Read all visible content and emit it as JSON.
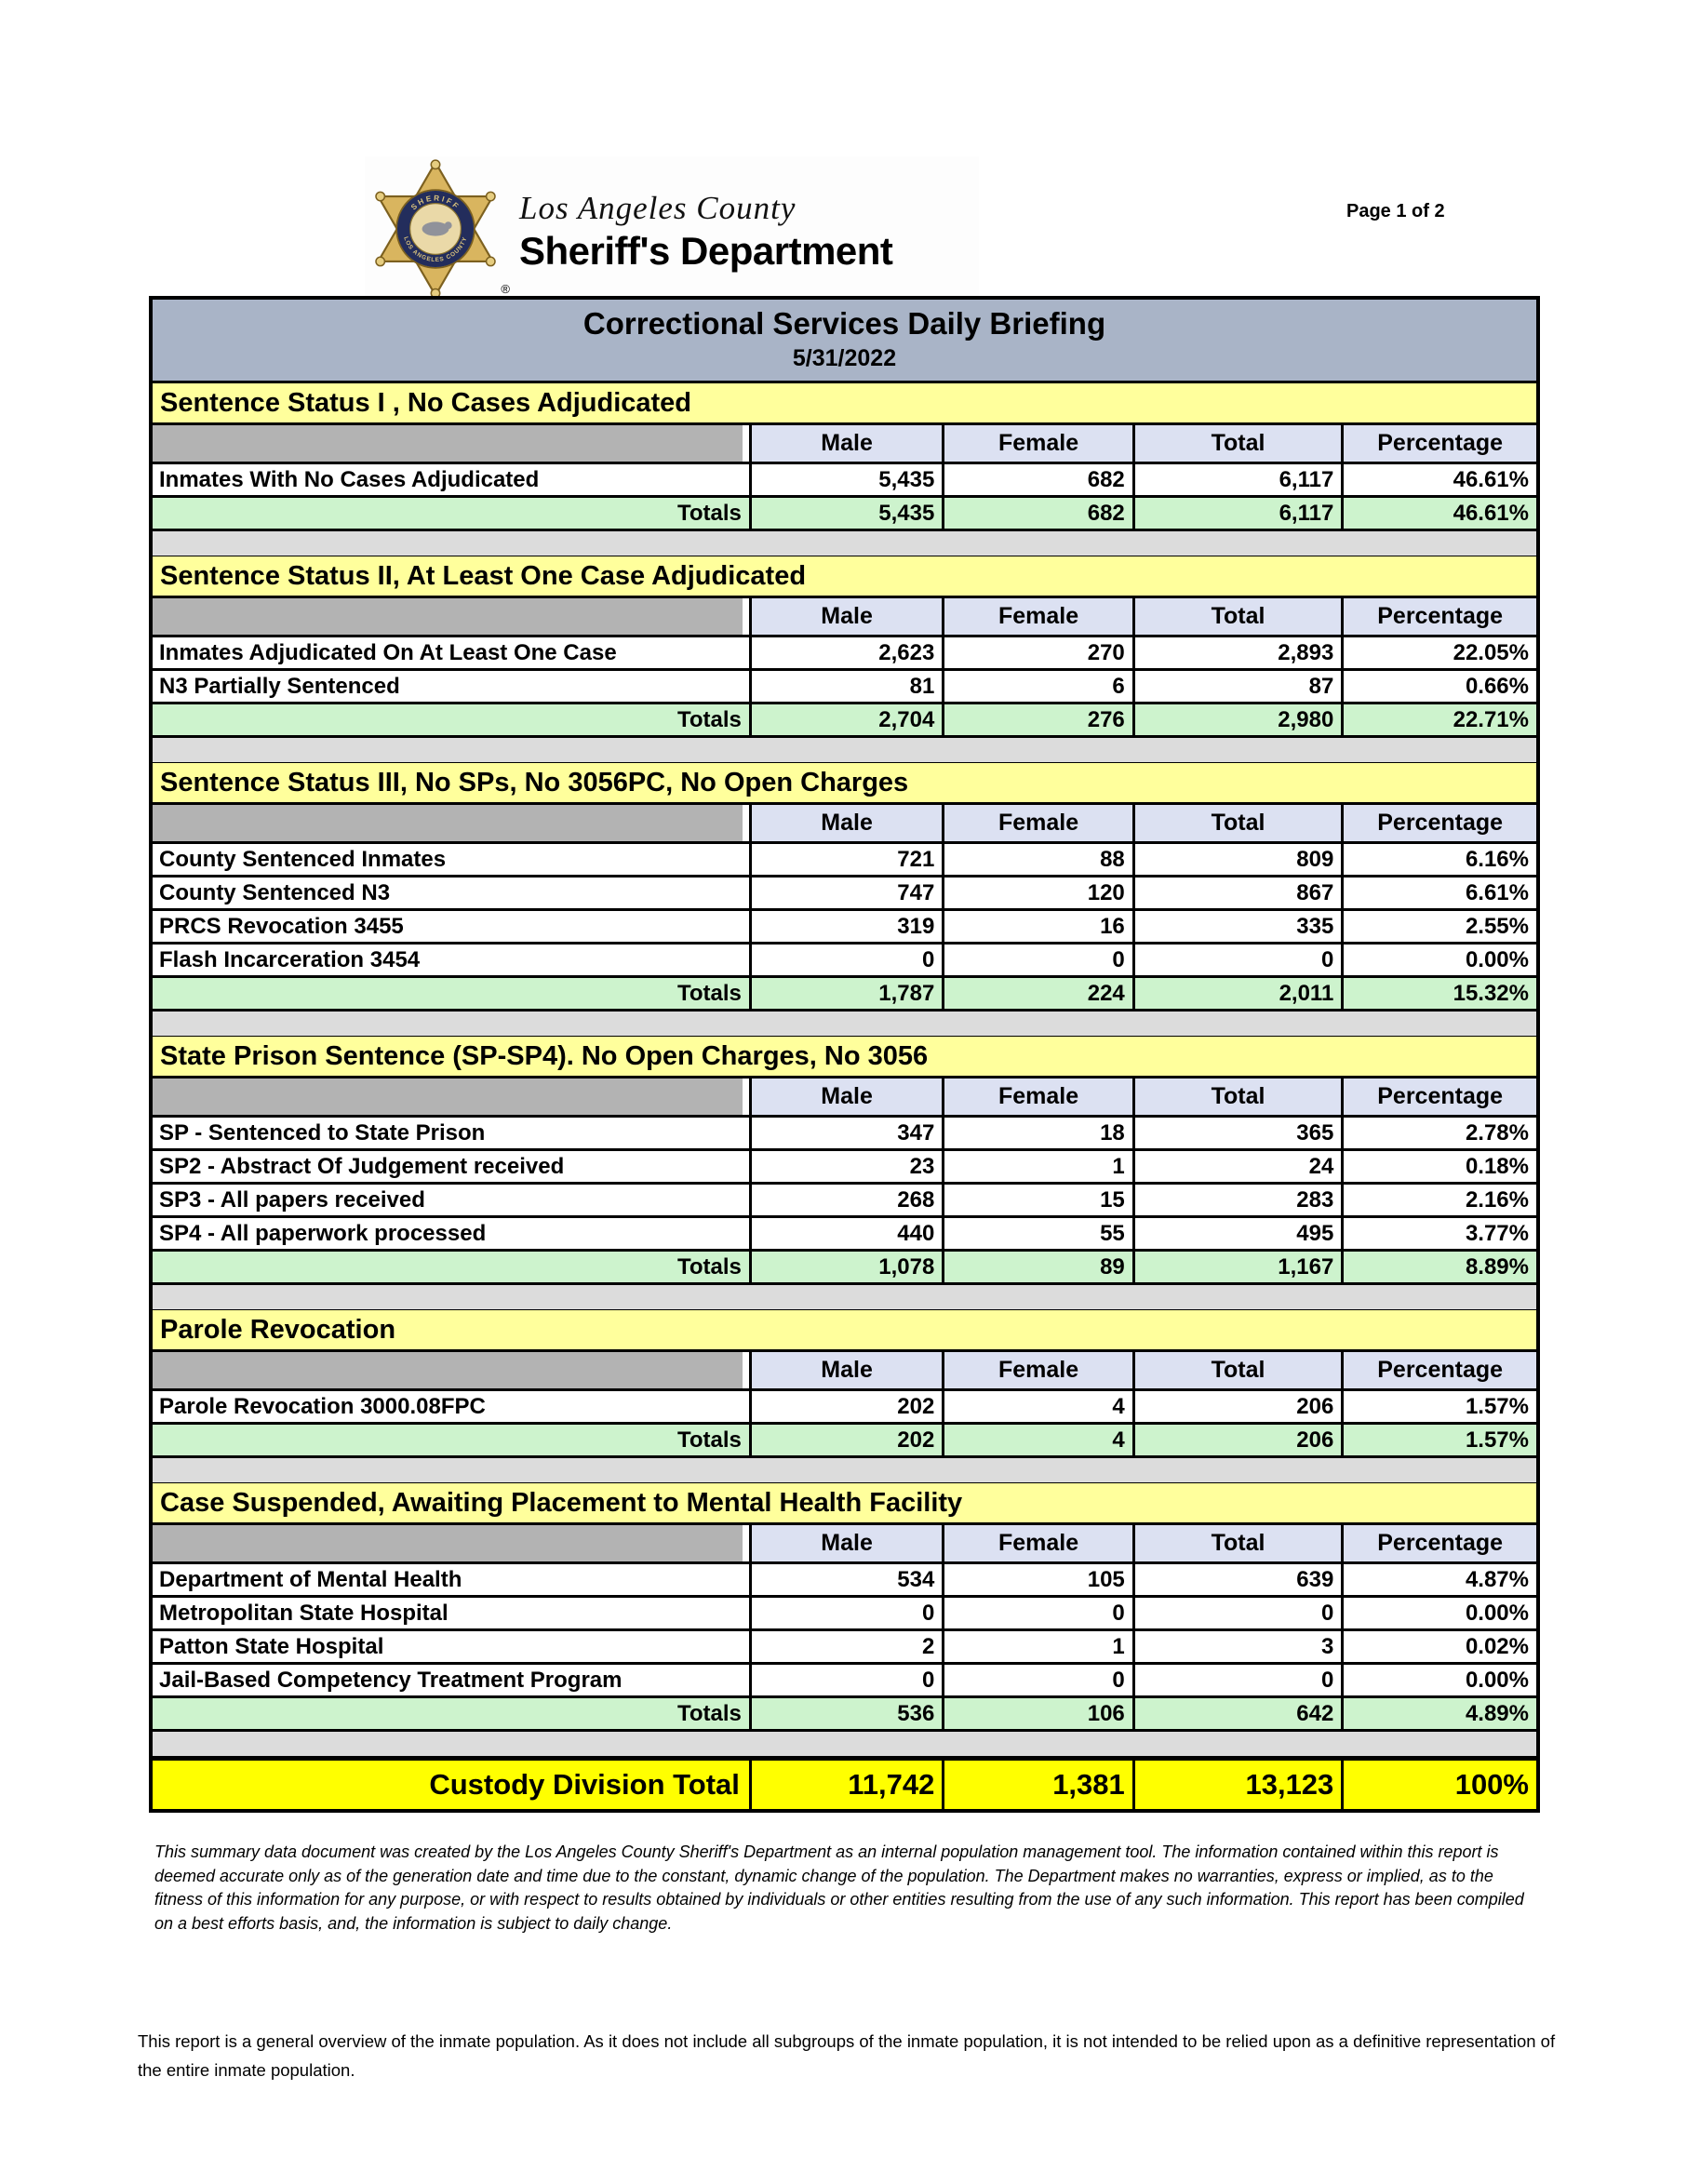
{
  "page": {
    "page_label": "Page 1 of 2"
  },
  "logo": {
    "county": "Los Angeles County",
    "department": "Sheriff's Department",
    "badge_ring_top": "SHERIFF",
    "badge_ring_bottom": "LOS ANGELES COUNTY",
    "registered_mark": "®"
  },
  "title": {
    "heading": "Correctional Services Daily Briefing",
    "date": "5/31/2022"
  },
  "columns": [
    "Male",
    "Female",
    "Total",
    "Percentage"
  ],
  "sections": [
    {
      "title": "Sentence Status I , No Cases Adjudicated",
      "rows": [
        {
          "label": "Inmates With No Cases Adjudicated",
          "male": "5,435",
          "female": "682",
          "total": "6,117",
          "pct": "46.61%"
        }
      ],
      "totals": {
        "label": "Totals",
        "male": "5,435",
        "female": "682",
        "total": "6,117",
        "pct": "46.61%"
      }
    },
    {
      "title": "Sentence Status II, At Least One Case Adjudicated",
      "rows": [
        {
          "label": "Inmates Adjudicated On At Least One Case",
          "male": "2,623",
          "female": "270",
          "total": "2,893",
          "pct": "22.05%"
        },
        {
          "label": "N3 Partially Sentenced",
          "male": "81",
          "female": "6",
          "total": "87",
          "pct": "0.66%"
        }
      ],
      "totals": {
        "label": "Totals",
        "male": "2,704",
        "female": "276",
        "total": "2,980",
        "pct": "22.71%"
      }
    },
    {
      "title": "Sentence Status III, No SPs, No 3056PC, No Open Charges",
      "rows": [
        {
          "label": "County Sentenced Inmates",
          "male": "721",
          "female": "88",
          "total": "809",
          "pct": "6.16%"
        },
        {
          "label": "County Sentenced N3",
          "male": "747",
          "female": "120",
          "total": "867",
          "pct": "6.61%"
        },
        {
          "label": "PRCS Revocation 3455",
          "male": "319",
          "female": "16",
          "total": "335",
          "pct": "2.55%"
        },
        {
          "label": "Flash Incarceration 3454",
          "male": "0",
          "female": "0",
          "total": "0",
          "pct": "0.00%"
        }
      ],
      "totals": {
        "label": "Totals",
        "male": "1,787",
        "female": "224",
        "total": "2,011",
        "pct": "15.32%"
      }
    },
    {
      "title": "State Prison Sentence (SP-SP4). No Open Charges, No 3056",
      "rows": [
        {
          "label": "SP - Sentenced to State Prison",
          "male": "347",
          "female": "18",
          "total": "365",
          "pct": "2.78%"
        },
        {
          "label": "SP2 - Abstract Of Judgement received",
          "male": "23",
          "female": "1",
          "total": "24",
          "pct": "0.18%"
        },
        {
          "label": "SP3 - All papers received",
          "male": "268",
          "female": "15",
          "total": "283",
          "pct": "2.16%"
        },
        {
          "label": "SP4 - All paperwork processed",
          "male": "440",
          "female": "55",
          "total": "495",
          "pct": "3.77%"
        }
      ],
      "totals": {
        "label": "Totals",
        "male": "1,078",
        "female": "89",
        "total": "1,167",
        "pct": "8.89%"
      }
    },
    {
      "title": "Parole Revocation",
      "rows": [
        {
          "label": "Parole Revocation 3000.08FPC",
          "male": "202",
          "female": "4",
          "total": "206",
          "pct": "1.57%"
        }
      ],
      "totals": {
        "label": "Totals",
        "male": "202",
        "female": "4",
        "total": "206",
        "pct": "1.57%"
      }
    },
    {
      "title": "Case Suspended, Awaiting Placement to Mental Health Facility",
      "rows": [
        {
          "label": "Department of Mental Health",
          "male": "534",
          "female": "105",
          "total": "639",
          "pct": "4.87%"
        },
        {
          "label": "Metropolitan State Hospital",
          "male": "0",
          "female": "0",
          "total": "0",
          "pct": "0.00%"
        },
        {
          "label": "Patton State Hospital",
          "male": "2",
          "female": "1",
          "total": "3",
          "pct": "0.02%"
        },
        {
          "label": "Jail-Based Competency Treatment Program",
          "male": "0",
          "female": "0",
          "total": "0",
          "pct": "0.00%"
        }
      ],
      "totals": {
        "label": "Totals",
        "male": "536",
        "female": "106",
        "total": "642",
        "pct": "4.89%"
      }
    }
  ],
  "grand_total": {
    "label": "Custody Division Total",
    "male": "11,742",
    "female": "1,381",
    "total": "13,123",
    "pct": "100%"
  },
  "disclaimer": "This summary data document was created by the Los Angeles County Sheriff's Department as an internal population management tool.  The information contained within this report is deemed accurate only as of the generation date and time due to the constant, dynamic change of the population.  The Department makes no warranties, express or implied, as to the fitness of this information for any purpose, or with respect to results obtained by individuals or other entities resulting from the use of any such information.  This report has been compiled on a best efforts basis, and, the information is subject to daily change.",
  "footnote": "This report is a general overview of the inmate population.  As it does not include all subgroups of the inmate population, it is not intended to be relied upon as a definitive representation of the entire inmate population.",
  "colors": {
    "title_bar": "#a9b4c7",
    "section_header_yellow": "#ffff9c",
    "column_header_lavender": "#dce1f2",
    "header_gray": "#b3b3b3",
    "totals_green": "#cdf3cd",
    "spacer_gray": "#dcdcdc",
    "grand_total_yellow": "#ffff00",
    "badge_gold": "#d9b55f",
    "badge_navy": "#232d5c"
  }
}
